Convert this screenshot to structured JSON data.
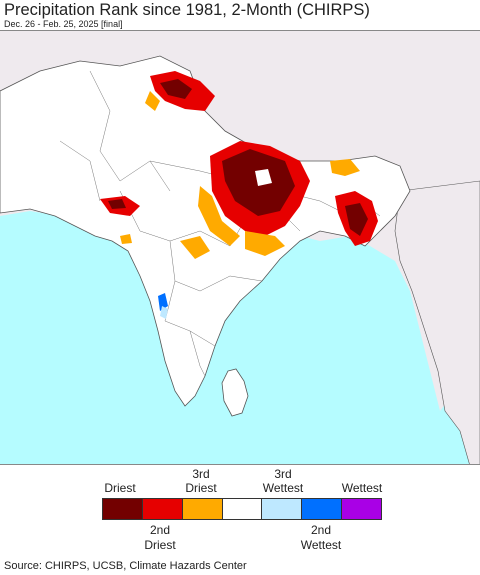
{
  "header": {
    "title": "Precipitation Rank since 1981, 2-Month (CHIRPS)",
    "subtitle": "Dec. 26 - Feb. 25, 2025 [final]"
  },
  "map": {
    "ocean_color": "#b5fcff",
    "land_color": "#ffffff",
    "outside_color": "#efeaee",
    "border_color": "#555555"
  },
  "legend": {
    "top_labels": {
      "driest": "Driest",
      "third_driest_1": "3rd",
      "third_driest_2": "Driest",
      "third_wettest_1": "3rd",
      "third_wettest_2": "Wettest",
      "wettest": "Wettest"
    },
    "bottom_labels": {
      "second_driest_1": "2nd",
      "second_driest_2": "Driest",
      "second_wettest_1": "2nd",
      "second_wettest_2": "Wettest"
    },
    "colors": [
      "#730000",
      "#e60000",
      "#ffaa00",
      "#ffffff",
      "#bee8ff",
      "#0070ff",
      "#a900e6"
    ]
  },
  "footer": {
    "source": "Source: CHIRPS, UCSB, Climate Hazards Center"
  }
}
